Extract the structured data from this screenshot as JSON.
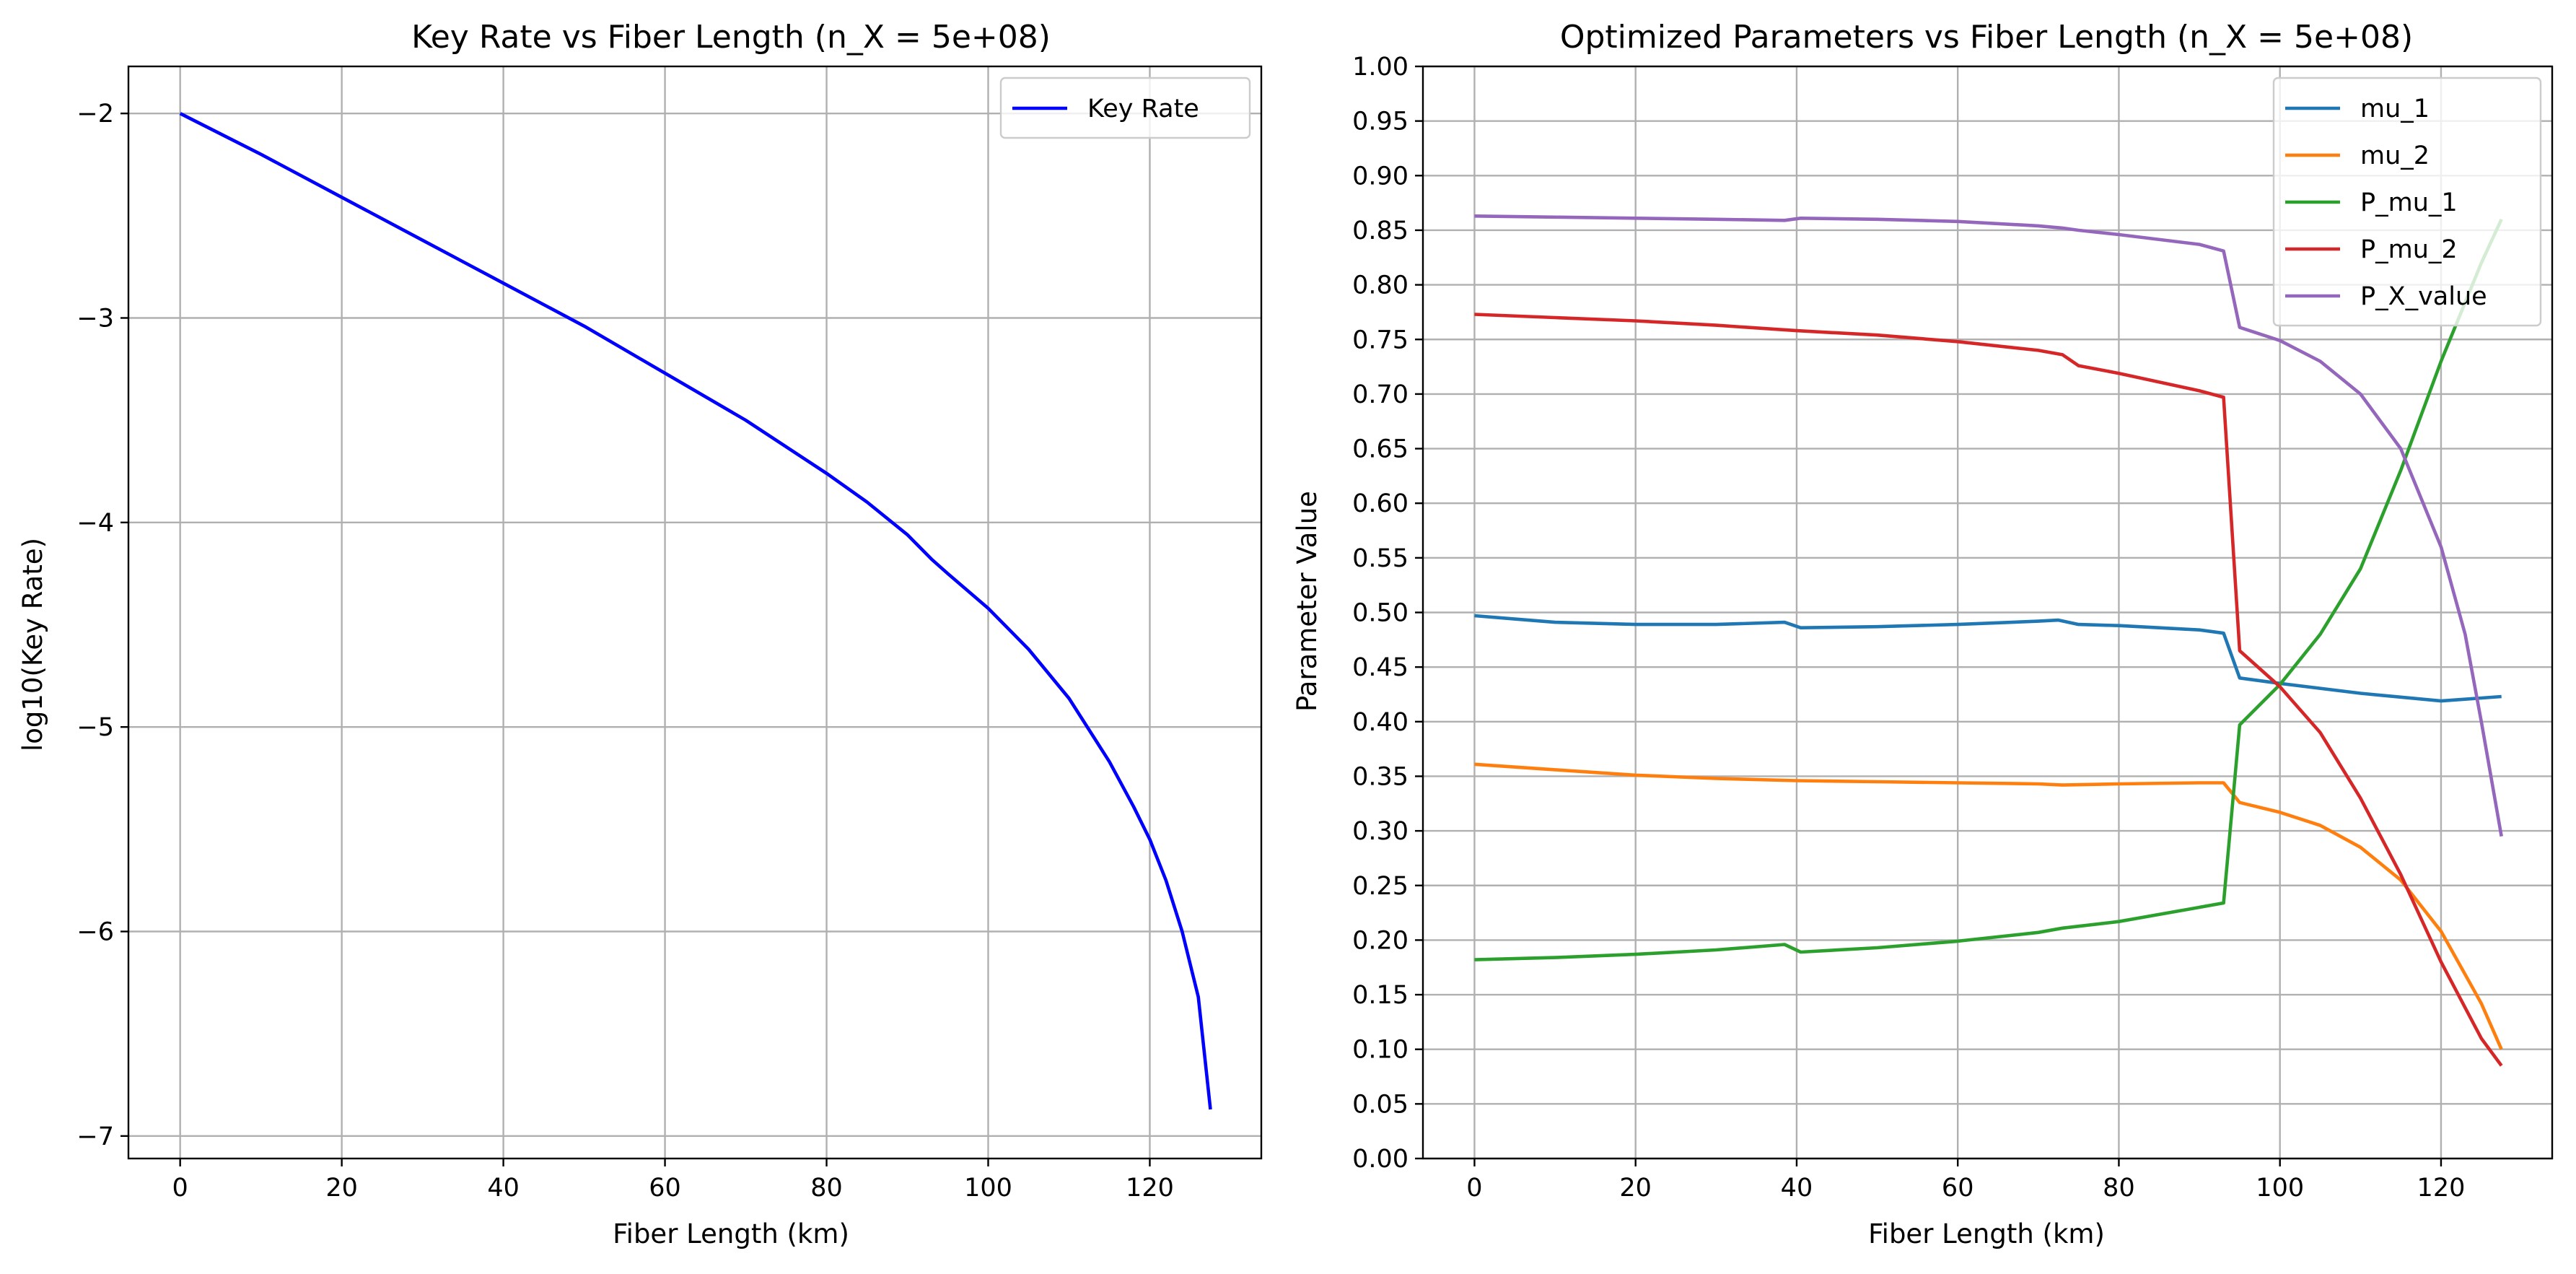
{
  "chart_data": [
    {
      "type": "line",
      "title": "Key Rate vs Fiber Length (n_X = 5e+08)",
      "xlabel": "Fiber Length (km)",
      "ylabel": "log10(Key Rate)",
      "xlim": [
        -6.4,
        133.8
      ],
      "ylim": [
        -7.11,
        -1.77
      ],
      "xticks": [
        0,
        20,
        40,
        60,
        80,
        100,
        120
      ],
      "yticks": [
        -7,
        -6,
        -5,
        -4,
        -3,
        -2
      ],
      "ytick_labels": [
        "−7",
        "−6",
        "−5",
        "−4",
        "−3",
        "−2"
      ],
      "grid": true,
      "legend_placement": "top-right",
      "series": [
        {
          "name": "Key Rate",
          "color": "#0000ff",
          "x": [
            0,
            10,
            20,
            30,
            40,
            50,
            60,
            70,
            80,
            85,
            90,
            93,
            95,
            100,
            105,
            110,
            115,
            118,
            120,
            122,
            124,
            126,
            127.5
          ],
          "y": [
            -2.0,
            -2.2,
            -2.41,
            -2.62,
            -2.83,
            -3.04,
            -3.27,
            -3.5,
            -3.76,
            -3.9,
            -4.06,
            -4.18,
            -4.25,
            -4.42,
            -4.62,
            -4.86,
            -5.17,
            -5.39,
            -5.55,
            -5.75,
            -6.0,
            -6.32,
            -6.87
          ]
        }
      ]
    },
    {
      "type": "line",
      "title": "Optimized Parameters vs Fiber Length (n_X = 5e+08)",
      "xlabel": "Fiber Length (km)",
      "ylabel": "Parameter Value",
      "xlim": [
        -6.4,
        133.8
      ],
      "ylim": [
        0,
        1
      ],
      "xticks": [
        0,
        20,
        40,
        60,
        80,
        100,
        120
      ],
      "yticks": [
        0.0,
        0.05,
        0.1,
        0.15,
        0.2,
        0.25,
        0.3,
        0.35,
        0.4,
        0.45,
        0.5,
        0.55,
        0.6,
        0.65,
        0.7,
        0.75,
        0.8,
        0.85,
        0.9,
        0.95,
        1.0
      ],
      "ytick_labels": [
        "0.00",
        "0.05",
        "0.10",
        "0.15",
        "0.20",
        "0.25",
        "0.30",
        "0.35",
        "0.40",
        "0.45",
        "0.50",
        "0.55",
        "0.60",
        "0.65",
        "0.70",
        "0.75",
        "0.80",
        "0.85",
        "0.90",
        "0.95",
        "1.00"
      ],
      "grid": true,
      "legend_placement": "top-right",
      "series": [
        {
          "name": "mu_1",
          "color": "#1f77b4",
          "x": [
            0,
            5,
            10,
            20,
            30,
            38.5,
            40.5,
            50,
            60,
            70,
            72.5,
            75,
            80,
            90,
            93,
            95,
            100,
            110,
            120,
            127.5
          ],
          "y": [
            0.497,
            0.494,
            0.491,
            0.489,
            0.489,
            0.491,
            0.486,
            0.487,
            0.489,
            0.492,
            0.493,
            0.489,
            0.488,
            0.484,
            0.481,
            0.44,
            0.435,
            0.426,
            0.419,
            0.423
          ]
        },
        {
          "name": "mu_2",
          "color": "#ff7f0e",
          "x": [
            0,
            10,
            20,
            30,
            40,
            50,
            60,
            70,
            73,
            80,
            90,
            93,
            95,
            100,
            105,
            110,
            115,
            120,
            125,
            127.5
          ],
          "y": [
            0.361,
            0.356,
            0.351,
            0.348,
            0.346,
            0.345,
            0.344,
            0.343,
            0.342,
            0.343,
            0.344,
            0.344,
            0.326,
            0.317,
            0.305,
            0.285,
            0.255,
            0.208,
            0.142,
            0.1
          ]
        },
        {
          "name": "P_mu_1",
          "color": "#2ca02c",
          "x": [
            0,
            10,
            20,
            30,
            38.5,
            40.5,
            50,
            60,
            70,
            73,
            80,
            90,
            93,
            95,
            100,
            105,
            110,
            115,
            120,
            125,
            127.5
          ],
          "y": [
            0.182,
            0.184,
            0.187,
            0.191,
            0.196,
            0.189,
            0.193,
            0.199,
            0.207,
            0.211,
            0.217,
            0.23,
            0.234,
            0.397,
            0.434,
            0.48,
            0.54,
            0.63,
            0.73,
            0.82,
            0.86
          ]
        },
        {
          "name": "P_mu_2",
          "color": "#d62728",
          "x": [
            0,
            10,
            20,
            30,
            40,
            50,
            60,
            70,
            73,
            75,
            80,
            90,
            93,
            95,
            100,
            105,
            110,
            115,
            120,
            125,
            127.5
          ],
          "y": [
            0.773,
            0.77,
            0.767,
            0.763,
            0.758,
            0.754,
            0.748,
            0.74,
            0.736,
            0.726,
            0.719,
            0.703,
            0.697,
            0.465,
            0.432,
            0.39,
            0.33,
            0.26,
            0.18,
            0.11,
            0.085
          ]
        },
        {
          "name": "P_X_value",
          "color": "#9467bd",
          "x": [
            0,
            10,
            20,
            30,
            38.5,
            40.5,
            50,
            60,
            70,
            73,
            75,
            80,
            90,
            93,
            95,
            100,
            105,
            110,
            115,
            120,
            123,
            125,
            127.5
          ],
          "y": [
            0.863,
            0.862,
            0.861,
            0.86,
            0.859,
            0.861,
            0.86,
            0.858,
            0.854,
            0.852,
            0.85,
            0.846,
            0.837,
            0.831,
            0.761,
            0.749,
            0.73,
            0.7,
            0.65,
            0.56,
            0.48,
            0.4,
            0.295
          ]
        }
      ]
    }
  ]
}
